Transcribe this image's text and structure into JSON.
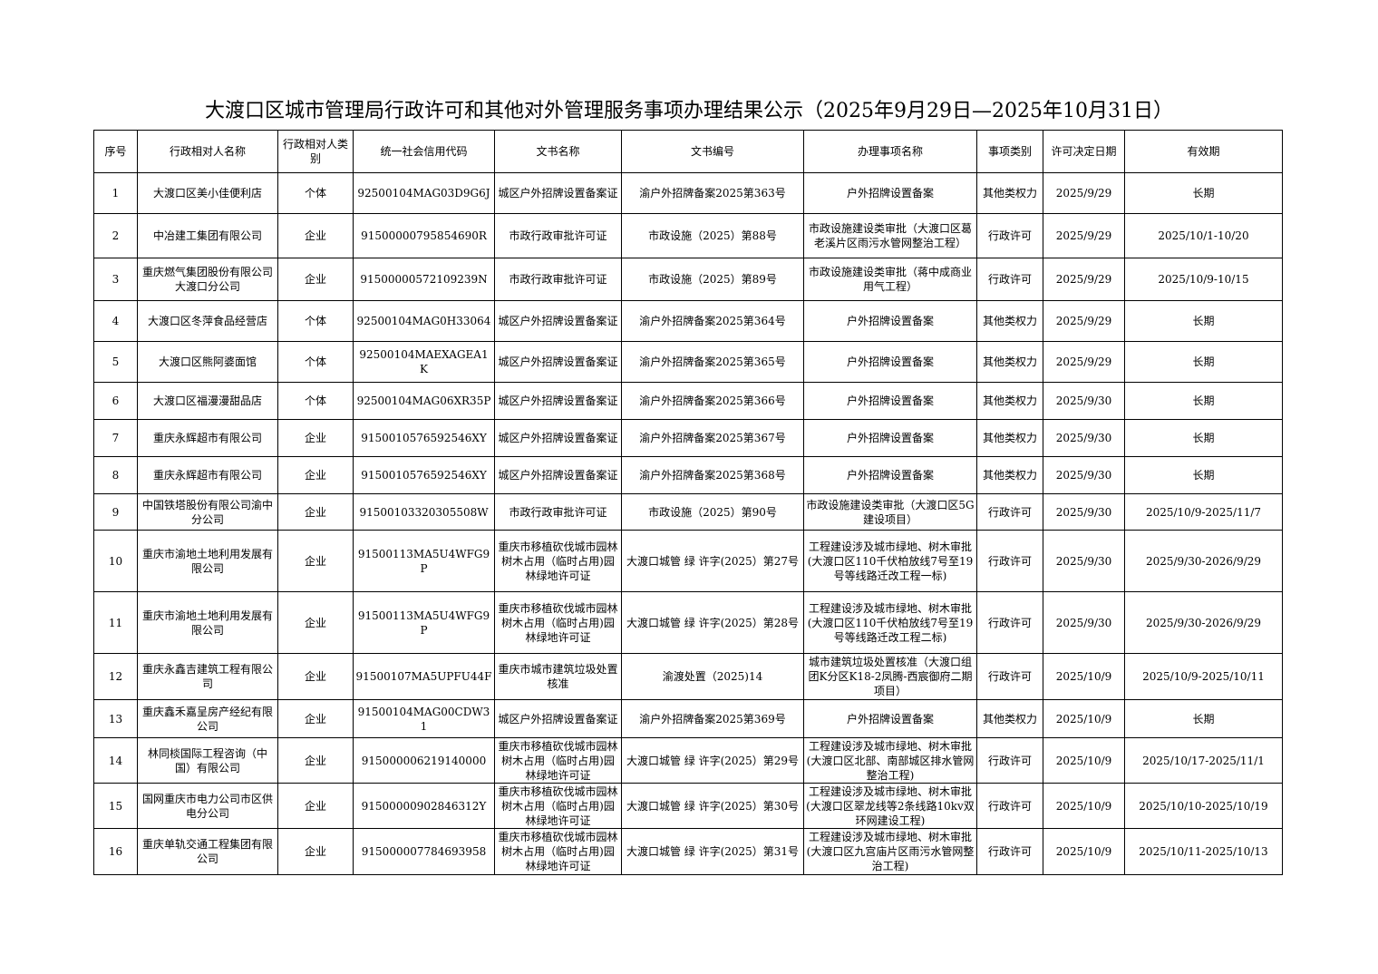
{
  "header": {
    "title": "大渡口区城市管理局行政许可和其他对外管理服务事项办理结果公示（2025年9月29日—2025年10月31日）"
  },
  "table": {
    "columns": [
      "序号",
      "行政相对人名称",
      "行政相对人类别",
      "统一社会信用代码",
      "文书名称",
      "文书编号",
      "办理事项名称",
      "事项类别",
      "许可决定日期",
      "有效期"
    ],
    "rows": [
      [
        "1",
        "大渡口区美小佳便利店",
        "个体",
        "92500104MAG03D9G6J",
        "城区户外招牌设置备案证",
        "渝户外招牌备案2025第363号",
        "户外招牌设置备案",
        "其他类权力",
        "2025/9/29",
        "长期"
      ],
      [
        "2",
        "中冶建工集团有限公司",
        "企业",
        "91500000795854690R",
        "市政行政审批许可证",
        "市政设施（2025）第88号",
        "市政设施建设类审批（大渡口区葛老溪片区雨污水管网整治工程）",
        "行政许可",
        "2025/9/29",
        "2025/10/1-10/20"
      ],
      [
        "3",
        "重庆燃气集团股份有限公司大渡口分公司",
        "企业",
        "91500000572109239N",
        "市政行政审批许可证",
        "市政设施（2025）第89号",
        "市政设施建设类审批（蒋中成商业用气工程）",
        "行政许可",
        "2025/9/29",
        "2025/10/9-10/15"
      ],
      [
        "4",
        "大渡口区冬萍食品经营店",
        "个体",
        "92500104MAG0H33064",
        "城区户外招牌设置备案证",
        "渝户外招牌备案2025第364号",
        "户外招牌设置备案",
        "其他类权力",
        "2025/9/29",
        "长期"
      ],
      [
        "5",
        "大渡口区熊阿婆面馆",
        "个体",
        "92500104MAEXAGEA1K",
        "城区户外招牌设置备案证",
        "渝户外招牌备案2025第365号",
        "户外招牌设置备案",
        "其他类权力",
        "2025/9/29",
        "长期"
      ],
      [
        "6",
        "大渡口区福漫漫甜品店",
        "个体",
        "92500104MAG06XR35P",
        "城区户外招牌设置备案证",
        "渝户外招牌备案2025第366号",
        "户外招牌设置备案",
        "其他类权力",
        "2025/9/30",
        "长期"
      ],
      [
        "7",
        "重庆永辉超市有限公司",
        "企业",
        "9150010576592546XY",
        "城区户外招牌设置备案证",
        "渝户外招牌备案2025第367号",
        "户外招牌设置备案",
        "其他类权力",
        "2025/9/30",
        "长期"
      ],
      [
        "8",
        "重庆永辉超市有限公司",
        "企业",
        "9150010576592546XY",
        "城区户外招牌设置备案证",
        "渝户外招牌备案2025第368号",
        "户外招牌设置备案",
        "其他类权力",
        "2025/9/30",
        "长期"
      ],
      [
        "9",
        "中国铁塔股份有限公司渝中分公司",
        "企业",
        "91500103320305508W",
        "市政行政审批许可证",
        "市政设施（2025）第90号",
        "市政设施建设类审批（大渡口区5G建设项目）",
        "行政许可",
        "2025/9/30",
        "2025/10/9-2025/11/7"
      ],
      [
        "10",
        "重庆市渝地土地利用发展有限公司",
        "企业",
        "91500113MA5U4WFG9P",
        "重庆市移植砍伐城市园林树木占用（临时占用)园林绿地许可证",
        "大渡口城管 绿 许字(2025）第27号",
        "工程建设涉及城市绿地、树木审批(大渡口区110千伏柏放线7号至19号等线路迁改工程一标)",
        "行政许可",
        "2025/9/30",
        "2025/9/30-2026/9/29"
      ],
      [
        "11",
        "重庆市渝地土地利用发展有限公司",
        "企业",
        "91500113MA5U4WFG9P",
        "重庆市移植砍伐城市园林树木占用（临时占用)园林绿地许可证",
        "大渡口城管 绿 许字(2025）第28号",
        "工程建设涉及城市绿地、树木审批(大渡口区110千伏柏放线7号至19号等线路迁改工程二标)",
        "行政许可",
        "2025/9/30",
        "2025/9/30-2026/9/29"
      ],
      [
        "12",
        "重庆永鑫吉建筑工程有限公司",
        "企业",
        "91500107MA5UPFU44F",
        "重庆市城市建筑垃圾处置核准",
        "渝渡处置（2025)14",
        "城市建筑垃圾处置核准（大渡口组团K分区K18-2凤腾-西宸御府二期项目）",
        "行政许可",
        "2025/10/9",
        "2025/10/9-2025/10/11"
      ],
      [
        "13",
        "重庆鑫禾嘉呈房产经纪有限公司",
        "企业",
        "91500104MAG00CDW31",
        "城区户外招牌设置备案证",
        "渝户外招牌备案2025第369号",
        "户外招牌设置备案",
        "其他类权力",
        "2025/10/9",
        "长期"
      ],
      [
        "14",
        "林同棪国际工程咨询（中国）有限公司",
        "企业",
        "915000006219140000",
        "重庆市移植砍伐城市园林树木占用（临时占用)园林绿地许可证",
        "大渡口城管 绿 许字(2025）第29号",
        "工程建设涉及城市绿地、树木审批(大渡口区北部、南部城区排水管网整治工程)",
        "行政许可",
        "2025/10/9",
        "2025/10/17-2025/11/1"
      ],
      [
        "15",
        "国网重庆市电力公司市区供电分公司",
        "企业",
        "91500000902846312Y",
        "重庆市移植砍伐城市园林树木占用（临时占用)园林绿地许可证",
        "大渡口城管 绿 许字(2025）第30号",
        "工程建设涉及城市绿地、树木审批(大渡口区翠龙线等2条线路10kv双环网建设工程)",
        "行政许可",
        "2025/10/9",
        "2025/10/10-2025/10/19"
      ],
      [
        "16",
        "重庆单轨交通工程集团有限公司",
        "企业",
        "915000007784693958",
        "重庆市移植砍伐城市园林树木占用（临时占用)园林绿地许可证",
        "大渡口城管 绿 许字(2025）第31号",
        "工程建设涉及城市绿地、树木审批(大渡口区九宫庙片区雨污水管网整治工程)",
        "行政许可",
        "2025/10/9",
        "2025/10/11-2025/10/13"
      ]
    ]
  }
}
